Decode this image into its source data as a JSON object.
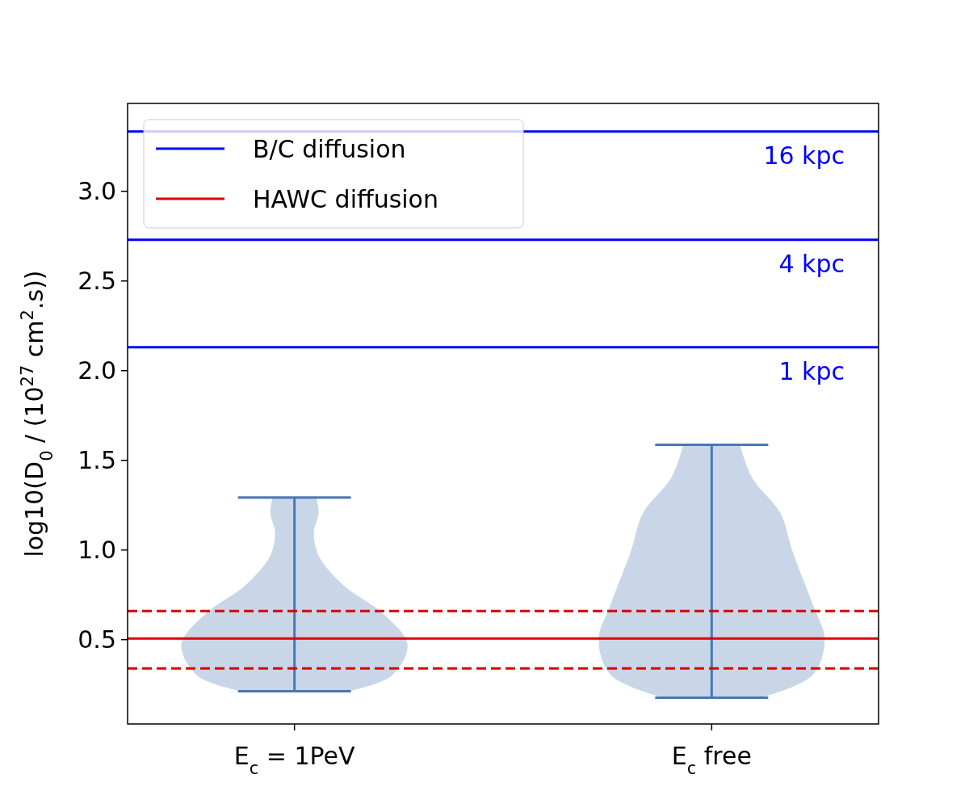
{
  "chart_data": {
    "type": "bar",
    "ylabel": "log10(D$_{0}$ / (10$^{27}$ cm$^{2}$.s))",
    "categories": [
      "E$_{c}$ = 1PeV",
      "E$_{c}$ free"
    ],
    "base": [
      0.212,
      0.176
    ],
    "values": [
      1.081,
      1.41
    ],
    "color": "#4878b4",
    "ylim": [
      0.03,
      3.49
    ],
    "yticks": [
      0.5,
      {
        "value": 1,
        "label": "1.0"
      },
      1.5,
      {
        "value": 2,
        "label": "2.0"
      },
      2.5,
      {
        "value": 3,
        "label": "3.0"
      }
    ],
    "ref_lines": [
      {
        "axis": "y",
        "value": 3.333,
        "label": "B/C diffusion",
        "color": "#0000ff",
        "line_style": "solid"
      },
      {
        "axis": "y",
        "value": 2.73,
        "color": "#0000ff",
        "line_style": "solid"
      },
      {
        "axis": "y",
        "value": 2.13,
        "color": "#0000ff",
        "line_style": "solid"
      },
      {
        "axis": "y",
        "value": 0.506,
        "label": "HAWC diffusion",
        "color": "#dd0000",
        "line_style": "solid"
      },
      {
        "axis": "y",
        "value": 0.66,
        "color": "#dd0000",
        "line_style": "dashed"
      },
      {
        "axis": "y",
        "value": 0.34,
        "color": "#dd0000",
        "line_style": "dashed"
      }
    ],
    "annotations": [
      {
        "text": "16 kpc",
        "y": 3.333
      },
      {
        "text": "4 kpc",
        "y": 2.73
      },
      {
        "text": "1 kpc",
        "y": 2.13
      }
    ],
    "legend": "top left",
    "grid": false
  }
}
